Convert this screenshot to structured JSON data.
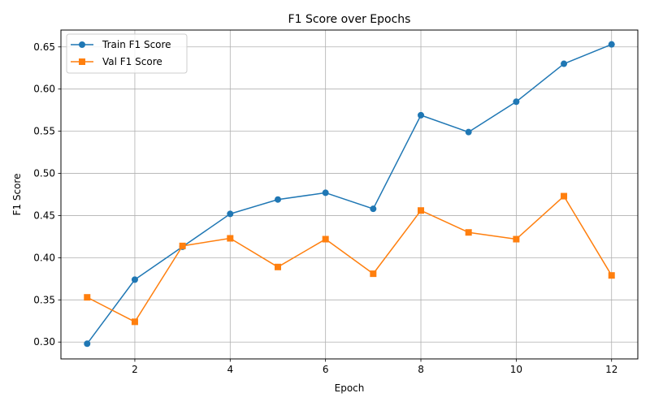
{
  "chart_data": {
    "type": "line",
    "title": "F1 Score over Epochs",
    "xlabel": "Epoch",
    "ylabel": "F1 Score",
    "x": [
      1,
      2,
      3,
      4,
      5,
      6,
      7,
      8,
      9,
      10,
      11,
      12
    ],
    "xlim": [
      0.45,
      12.55
    ],
    "ylim": [
      0.28,
      0.67
    ],
    "xticks": [
      2,
      4,
      6,
      8,
      10,
      12
    ],
    "xtick_labels": [
      "2",
      "4",
      "6",
      "8",
      "10",
      "12"
    ],
    "yticks": [
      0.3,
      0.35,
      0.4,
      0.45,
      0.5,
      0.55,
      0.6,
      0.65
    ],
    "ytick_labels": [
      "0.30",
      "0.35",
      "0.40",
      "0.45",
      "0.50",
      "0.55",
      "0.60",
      "0.65"
    ],
    "grid": true,
    "legend_position": "top-left",
    "series": [
      {
        "name": "Train F1 Score",
        "color": "#1f77b4",
        "marker": "circle",
        "values": [
          0.298,
          0.374,
          0.413,
          0.452,
          0.469,
          0.477,
          0.458,
          0.569,
          0.549,
          0.585,
          0.63,
          0.653
        ]
      },
      {
        "name": "Val F1 Score",
        "color": "#ff7f0e",
        "marker": "square",
        "values": [
          0.353,
          0.324,
          0.414,
          0.423,
          0.389,
          0.422,
          0.381,
          0.456,
          0.43,
          0.422,
          0.473,
          0.379
        ]
      }
    ]
  }
}
